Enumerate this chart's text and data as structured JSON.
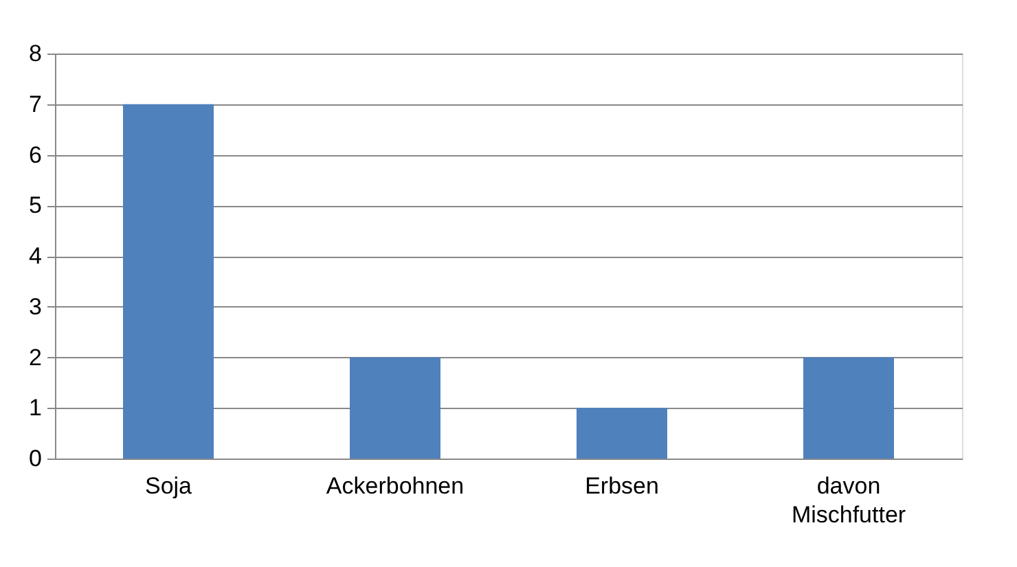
{
  "chart_data": {
    "type": "bar",
    "categories": [
      "Soja",
      "Ackerbohnen",
      "Erbsen",
      "davon Mischfutter"
    ],
    "values": [
      7,
      2,
      1,
      2
    ],
    "color": "#4f81bd",
    "ylim": [
      0,
      8
    ],
    "yticks": [
      0,
      1,
      2,
      3,
      4,
      5,
      6,
      7,
      8
    ],
    "grid": "y"
  }
}
